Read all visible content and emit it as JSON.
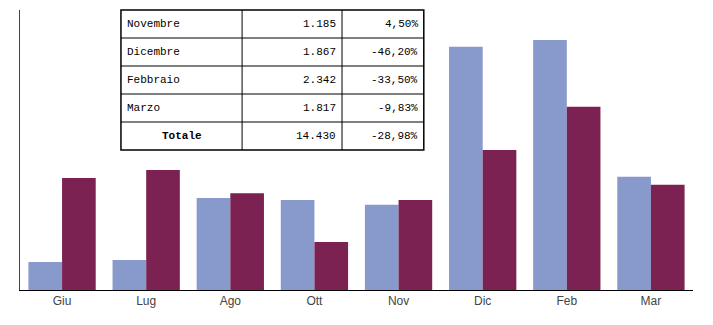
{
  "chart_data": {
    "type": "bar",
    "categories": [
      "Giu",
      "Lug",
      "Ago",
      "Ott",
      "Nov",
      "Dic",
      "Feb",
      "Mar"
    ],
    "series": [
      {
        "color": "#8899CC",
        "values": [
          420,
          450,
          1380,
          1350,
          1280,
          3650,
          3750,
          1700
        ]
      },
      {
        "color": "#7B2252",
        "values": [
          1680,
          1800,
          1450,
          720,
          1350,
          2100,
          2750,
          1580
        ]
      }
    ],
    "ylim": [
      0,
      4200
    ],
    "grid": false,
    "tick_labels": "x",
    "table": {
      "rows": [
        [
          "Novembre",
          "1.185",
          "4,50%"
        ],
        [
          "Dicembre",
          "1.867",
          "-46,20%"
        ],
        [
          "Febbraio",
          "2.342",
          "-33,50%"
        ],
        [
          "Marzo",
          "1.817",
          "-9,83%"
        ]
      ],
      "total": [
        "Totale",
        "14.430",
        "-28,98%"
      ]
    }
  }
}
